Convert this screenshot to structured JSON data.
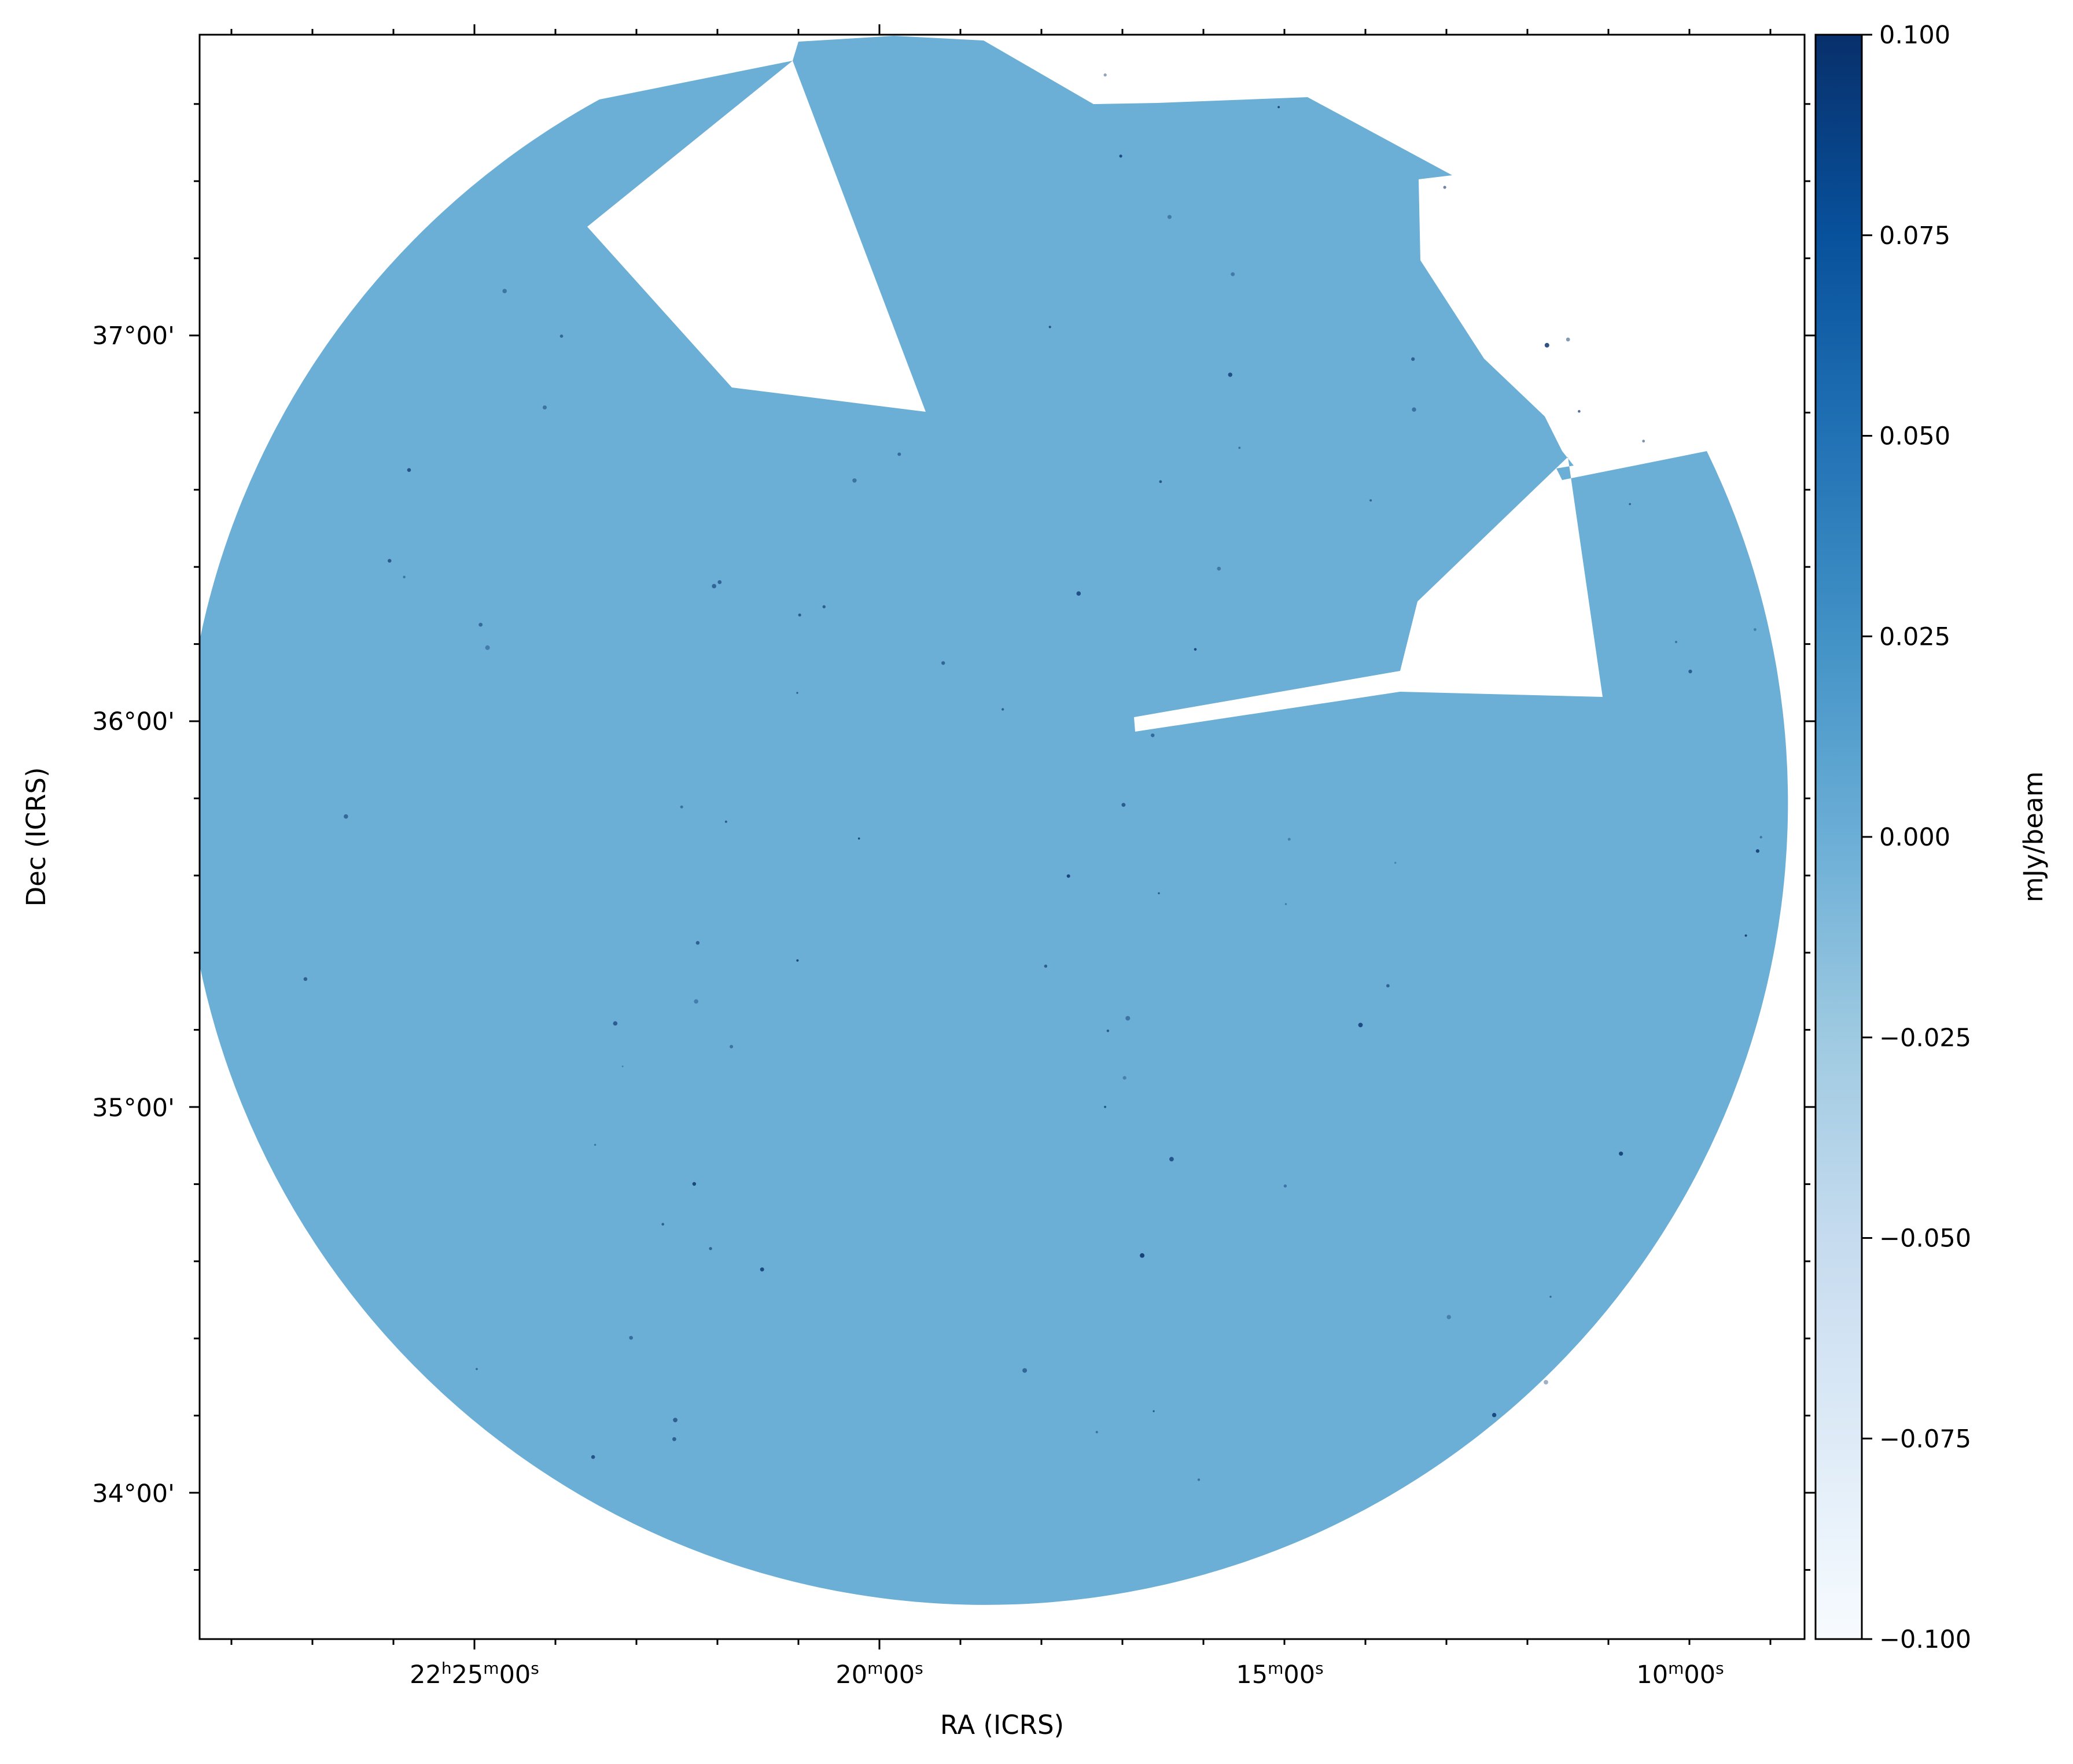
{
  "chart_data": {
    "type": "heatmap",
    "description_of_data_visible": "radio continuum sky image (flux density map) in RA/Dec",
    "xlabel": "RA (ICRS)",
    "ylabel": "Dec (ICRS)",
    "x_ticks": [
      {
        "value": "22h25m00s",
        "main": "22",
        "sup1": "h",
        "mid": "25",
        "sup2": "m",
        "end": "00",
        "sup3": "s"
      },
      {
        "value": "20m00s",
        "main": "20",
        "sup1": "m",
        "mid": "00",
        "sup2": "s"
      },
      {
        "value": "15m00s",
        "main": "15",
        "sup1": "m",
        "mid": "00",
        "sup2": "s"
      },
      {
        "value": "10m00s",
        "main": "10",
        "sup1": "m",
        "mid": "00",
        "sup2": "s"
      }
    ],
    "y_ticks": [
      "37°00'",
      "36°00'",
      "35°00'",
      "34°00'"
    ],
    "y_tick_values_deg": [
      37.0,
      36.0,
      35.0,
      34.0
    ],
    "colorbar": {
      "label": "mJy/beam",
      "vmin": -0.1,
      "vmax": 0.1,
      "ticks": [
        "0.100",
        "0.075",
        "0.050",
        "0.025",
        "0.000",
        "−0.025",
        "−0.050",
        "−0.075",
        "−0.100"
      ],
      "tick_values": [
        0.1,
        0.075,
        0.05,
        0.025,
        0.0,
        -0.025,
        -0.05,
        -0.075,
        -0.1
      ],
      "colormap": "Blues",
      "color_low": "#f7fbff",
      "color_mid": "#6baed6",
      "color_high": "#08306b"
    },
    "field_color": "#6baed6",
    "source_color": "#08306b",
    "grid": false
  }
}
